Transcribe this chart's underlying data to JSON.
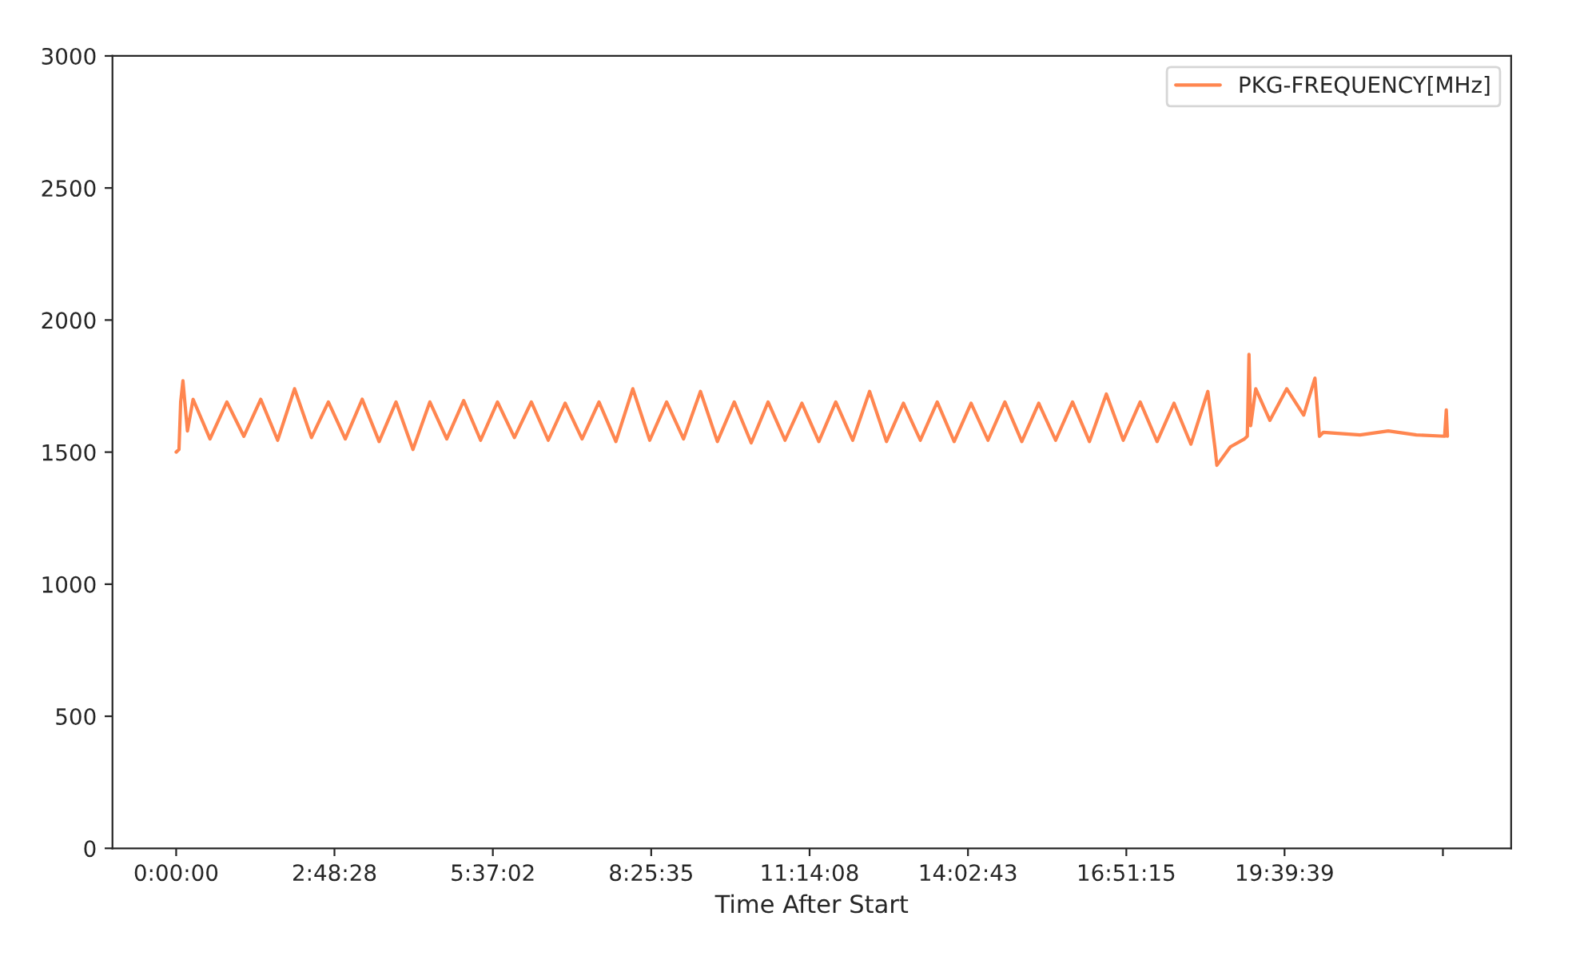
{
  "chart_data": {
    "type": "line",
    "xlabel": "Time After Start",
    "xlim": [
      -1.13,
      23.68
    ],
    "ylim": [
      0,
      3000
    ],
    "xticks": [
      {
        "value": 0,
        "label": "0:00:00"
      },
      {
        "value": 2.8078,
        "label": "2:48:28"
      },
      {
        "value": 5.6172,
        "label": "5:37:02"
      },
      {
        "value": 8.4264,
        "label": "8:25:35"
      },
      {
        "value": 11.2356,
        "label": "11:14:08"
      },
      {
        "value": 14.0453,
        "label": "14:02:43"
      },
      {
        "value": 16.8542,
        "label": "16:51:15"
      },
      {
        "value": 19.6608,
        "label": "19:39:39"
      },
      {
        "value": 22.47,
        "label": null
      }
    ],
    "yticks": [
      0,
      500,
      1000,
      1500,
      2000,
      2500,
      3000
    ],
    "grid": false,
    "legend": "top right",
    "marker": "none",
    "line_style": "solid",
    "series": [
      {
        "name": "PKG-FREQUENCY[MHz]",
        "color": "#ff8650",
        "x": [
          0,
          0.05,
          0.08,
          0.12,
          0.2,
          0.3,
          0.6,
          0.9,
          1.2,
          1.5,
          1.8,
          2.1,
          2.4,
          2.7,
          3.0,
          3.3,
          3.6,
          3.9,
          4.2,
          4.5,
          4.8,
          5.1,
          5.4,
          5.7,
          6.0,
          6.3,
          6.6,
          6.9,
          7.2,
          7.5,
          7.8,
          8.1,
          8.4,
          8.7,
          9.0,
          9.3,
          9.6,
          9.9,
          10.2,
          10.5,
          10.8,
          11.1,
          11.4,
          11.7,
          12.0,
          12.3,
          12.6,
          12.9,
          13.2,
          13.5,
          13.8,
          14.1,
          14.4,
          14.7,
          15.0,
          15.3,
          15.6,
          15.9,
          16.2,
          16.5,
          16.8,
          17.1,
          17.4,
          17.7,
          18.0,
          18.3,
          18.43,
          18.46,
          18.7,
          18.95,
          19.0,
          19.03,
          19.06,
          19.15,
          19.4,
          19.7,
          20.0,
          20.2,
          20.28,
          20.35,
          21.0,
          21.5,
          22.0,
          22.5,
          22.53,
          22.55
        ],
        "values": [
          1500,
          1510,
          1690,
          1770,
          1580,
          1700,
          1550,
          1690,
          1560,
          1700,
          1545,
          1740,
          1555,
          1690,
          1550,
          1700,
          1540,
          1690,
          1510,
          1690,
          1550,
          1695,
          1545,
          1690,
          1555,
          1690,
          1545,
          1685,
          1550,
          1690,
          1540,
          1740,
          1545,
          1690,
          1550,
          1730,
          1540,
          1690,
          1535,
          1690,
          1545,
          1685,
          1540,
          1690,
          1545,
          1730,
          1540,
          1685,
          1545,
          1690,
          1540,
          1685,
          1545,
          1690,
          1540,
          1685,
          1545,
          1690,
          1540,
          1720,
          1545,
          1690,
          1540,
          1685,
          1530,
          1730,
          1510,
          1450,
          1520,
          1550,
          1560,
          1870,
          1600,
          1740,
          1620,
          1740,
          1640,
          1780,
          1560,
          1575,
          1565,
          1580,
          1565,
          1560,
          1660,
          1560
        ]
      }
    ]
  }
}
